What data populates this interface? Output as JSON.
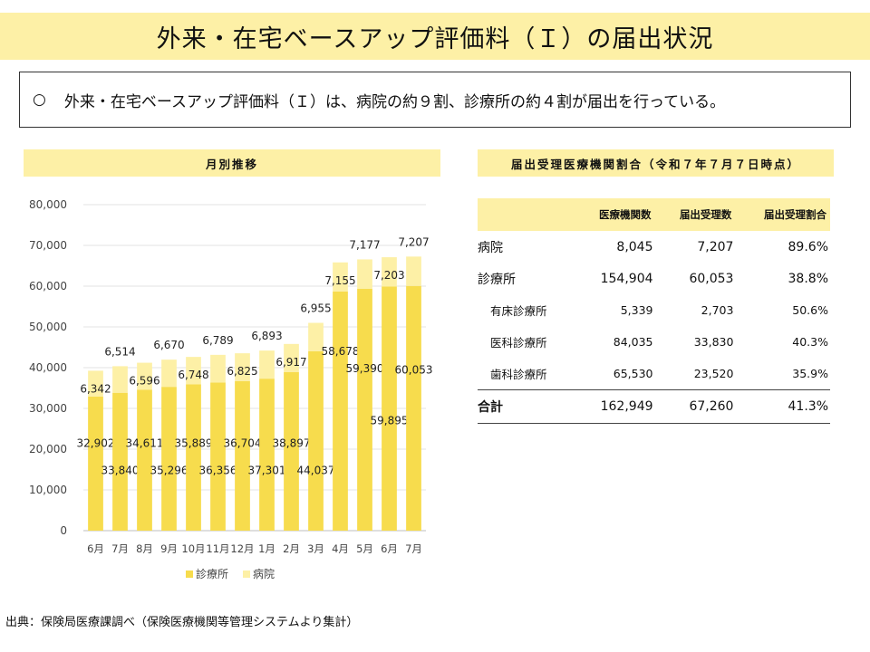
{
  "title": "外来・在宅ベースアップ評価料（Ｉ）の届出状況",
  "summary": {
    "bullet": "○",
    "text": "外来・在宅ベースアップ評価料（Ｉ）は、病院の約９割、診療所の約４割が届出を行っている。"
  },
  "left_section_title": "月別推移",
  "right_section_title": "届出受理医療機関割合（令和７年７月７日時点）",
  "chart_data": {
    "type": "bar",
    "stacked": true,
    "categories": [
      "6月",
      "7月",
      "8月",
      "9月",
      "10月",
      "11月",
      "12月",
      "1月",
      "2月",
      "3月",
      "4月",
      "5月",
      "6月",
      "7月"
    ],
    "series": [
      {
        "name": "診療所",
        "color": "#f7dc4d",
        "values": [
          32902,
          33840,
          34611,
          35296,
          35889,
          36356,
          36704,
          37301,
          38897,
          44037,
          58678,
          59390,
          59895,
          60053
        ]
      },
      {
        "name": "病院",
        "color": "#fdf0a6",
        "values": [
          6342,
          6514,
          6596,
          6670,
          6748,
          6789,
          6825,
          6893,
          6917,
          6955,
          7155,
          7177,
          7203,
          7207
        ]
      }
    ],
    "ylim": [
      0,
      80000
    ],
    "yticks": [
      0,
      10000,
      20000,
      30000,
      40000,
      50000,
      60000,
      70000,
      80000
    ],
    "grid": true,
    "legend_position": "bottom"
  },
  "table": {
    "headers": [
      "",
      "医療機関数",
      "届出受理数",
      "届出受理割合"
    ],
    "rows": [
      {
        "label": "病院",
        "count": "8,045",
        "accepted": "7,207",
        "ratio": "89.6%",
        "kind": "main"
      },
      {
        "label": "診療所",
        "count": "154,904",
        "accepted": "60,053",
        "ratio": "38.8%",
        "kind": "main"
      },
      {
        "label": "有床診療所",
        "count": "5,339",
        "accepted": "2,703",
        "ratio": "50.6%",
        "kind": "sub"
      },
      {
        "label": "医科診療所",
        "count": "84,035",
        "accepted": "33,830",
        "ratio": "40.3%",
        "kind": "sub"
      },
      {
        "label": "歯科診療所",
        "count": "65,530",
        "accepted": "23,520",
        "ratio": "35.9%",
        "kind": "sub"
      },
      {
        "label": "合計",
        "count": "162,949",
        "accepted": "67,260",
        "ratio": "41.3%",
        "kind": "total"
      }
    ]
  },
  "source": "出典：保険局医療課調べ（保険医療機関等管理システムより集計）"
}
